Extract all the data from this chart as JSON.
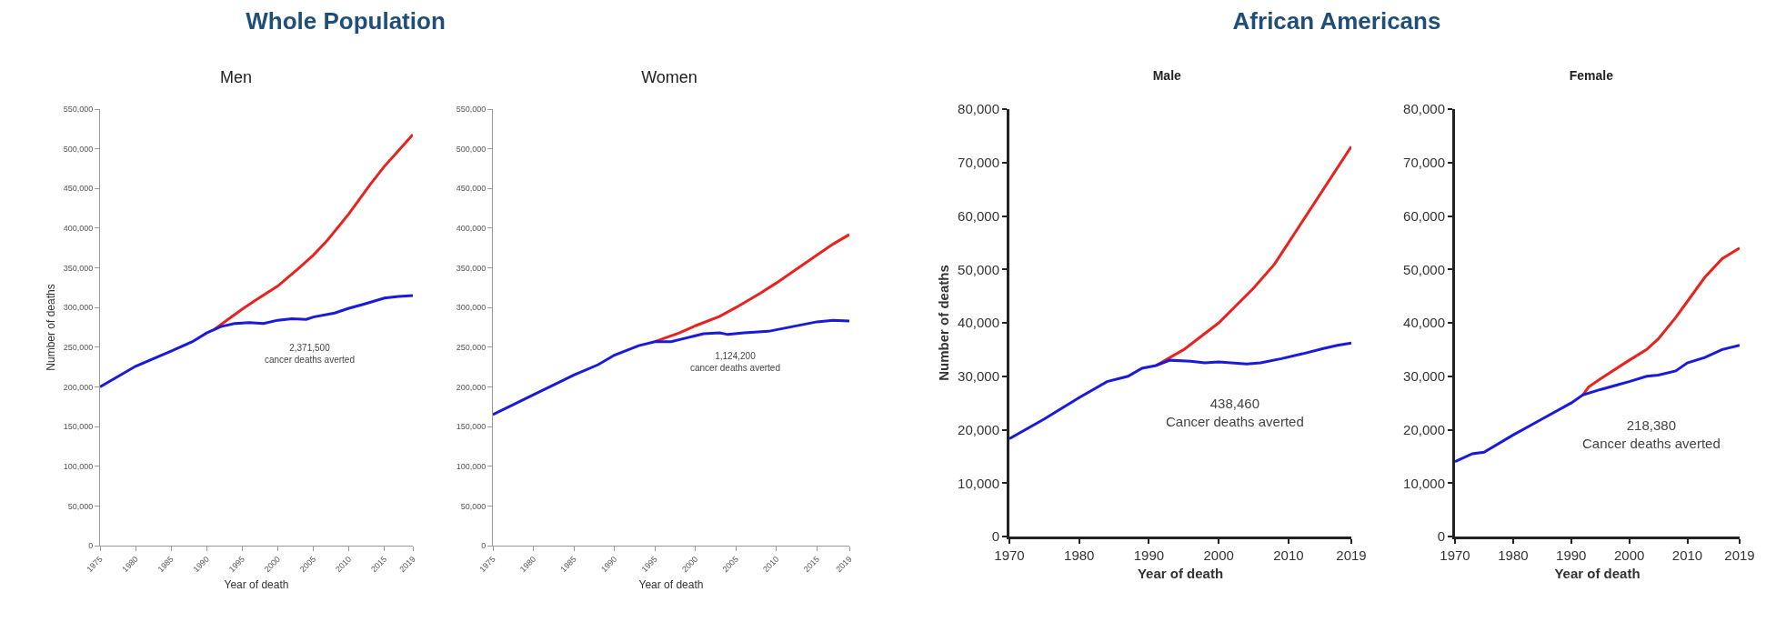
{
  "chart_data": [
    {
      "type": "line",
      "title": "Whole Population",
      "subtitle": "Men",
      "xlabel": "Year of death",
      "ylabel": "Number of deaths",
      "xlim": [
        1975,
        2019
      ],
      "xticks": [
        1975,
        1980,
        1985,
        1990,
        1995,
        2000,
        2005,
        2010,
        2015,
        2019
      ],
      "ylim": [
        0,
        550000
      ],
      "yticks": [
        {
          "value": 0,
          "label": "0"
        },
        {
          "value": 50000,
          "label": "50,000"
        },
        {
          "value": 100000,
          "label": "100,000"
        },
        {
          "value": 150000,
          "label": "150,000"
        },
        {
          "value": 200000,
          "label": "200,000"
        },
        {
          "value": 250000,
          "label": "250,000"
        },
        {
          "value": 300000,
          "label": "300,000"
        },
        {
          "value": 350000,
          "label": "350,000"
        },
        {
          "value": 400000,
          "label": "400,000"
        },
        {
          "value": 450000,
          "label": "450,000"
        },
        {
          "value": 500000,
          "label": "500,000"
        },
        {
          "value": 550000,
          "label": "550,000"
        }
      ],
      "grid": false,
      "series": [
        {
          "color": "#e8231f",
          "x": [
            1991,
            1993,
            1995,
            1997,
            2000,
            2003,
            2005,
            2007,
            2010,
            2013,
            2015,
            2017,
            2019
          ],
          "values": [
            272000,
            285000,
            298000,
            310000,
            327000,
            350000,
            366000,
            385000,
            418000,
            455000,
            478000,
            498000,
            518000
          ]
        },
        {
          "color": "#1a1adb",
          "x": [
            1975,
            1980,
            1985,
            1988,
            1990,
            1992,
            1994,
            1996,
            1998,
            2000,
            2002,
            2004,
            2005,
            2008,
            2010,
            2012,
            2015,
            2017,
            2019
          ],
          "values": [
            200000,
            226000,
            245000,
            257000,
            268000,
            276000,
            280000,
            281000,
            280000,
            284000,
            286000,
            285000,
            288000,
            293000,
            299000,
            304000,
            312000,
            314000,
            315000
          ]
        }
      ],
      "annotations": [
        "2,371,500\ncancer deaths averted"
      ]
    },
    {
      "type": "line",
      "title": "Women",
      "xlabel": "Year of death",
      "xlim": [
        1975,
        2019
      ],
      "xticks": [
        1975,
        1980,
        1985,
        1990,
        1995,
        2000,
        2005,
        2010,
        2015,
        2019
      ],
      "ylim": [
        0,
        550000
      ],
      "yticks": [
        {
          "value": 0,
          "label": "0"
        },
        {
          "value": 50000,
          "label": "50,000"
        },
        {
          "value": 100000,
          "label": "100,000"
        },
        {
          "value": 150000,
          "label": "150,000"
        },
        {
          "value": 200000,
          "label": "200,000"
        },
        {
          "value": 250000,
          "label": "250,000"
        },
        {
          "value": 300000,
          "label": "300,000"
        },
        {
          "value": 350000,
          "label": "350,000"
        },
        {
          "value": 400000,
          "label": "400,000"
        },
        {
          "value": 450000,
          "label": "450,000"
        },
        {
          "value": 500000,
          "label": "500,000"
        },
        {
          "value": 550000,
          "label": "550,000"
        }
      ],
      "grid": false,
      "series": [
        {
          "color": "#e8231f",
          "x": [
            1995,
            1998,
            2000,
            2003,
            2005,
            2008,
            2010,
            2013,
            2015,
            2017,
            2019
          ],
          "values": [
            257000,
            268000,
            277000,
            289000,
            300000,
            318000,
            331000,
            352000,
            366000,
            380000,
            392000
          ]
        },
        {
          "color": "#1a1adb",
          "x": [
            1975,
            1978,
            1980,
            1983,
            1985,
            1988,
            1990,
            1993,
            1995,
            1997,
            1999,
            2001,
            2003,
            2004,
            2006,
            2009,
            2012,
            2015,
            2017,
            2019
          ],
          "values": [
            165000,
            180000,
            190000,
            205000,
            215000,
            228000,
            240000,
            252000,
            257000,
            257000,
            262000,
            267000,
            268000,
            266000,
            268000,
            270000,
            276000,
            282000,
            284000,
            283000
          ]
        }
      ],
      "annotations": [
        "1,124,200\ncancer deaths averted"
      ]
    },
    {
      "type": "line",
      "title": "African Americans",
      "subtitle": "Male",
      "xlabel": "Year of death",
      "ylabel": "Number of deaths",
      "xlim": [
        1970,
        2019
      ],
      "xticks": [
        1970,
        1980,
        1990,
        2000,
        2010,
        2019
      ],
      "ylim": [
        0,
        80000
      ],
      "yticks": [
        {
          "value": 0,
          "label": "0"
        },
        {
          "value": 10000,
          "label": "10,000"
        },
        {
          "value": 20000,
          "label": "20,000"
        },
        {
          "value": 30000,
          "label": "30,000"
        },
        {
          "value": 40000,
          "label": "40,000"
        },
        {
          "value": 50000,
          "label": "50,000"
        },
        {
          "value": 60000,
          "label": "60,000"
        },
        {
          "value": 70000,
          "label": "70,000"
        },
        {
          "value": 80000,
          "label": "80,000"
        }
      ],
      "grid": false,
      "series": [
        {
          "color": "#e8231f",
          "x": [
            1991,
            1995,
            2000,
            2005,
            2008,
            2010,
            2015,
            2019
          ],
          "values": [
            32000,
            35000,
            40000,
            46500,
            51000,
            55000,
            65000,
            73000
          ]
        },
        {
          "color": "#1a1adb",
          "x": [
            1970,
            1975,
            1980,
            1984,
            1987,
            1989,
            1991,
            1993,
            1996,
            1998,
            2000,
            2004,
            2006,
            2009,
            2012,
            2015,
            2017,
            2019
          ],
          "values": [
            18300,
            22000,
            26000,
            29000,
            30000,
            31500,
            32000,
            33000,
            32800,
            32500,
            32700,
            32300,
            32500,
            33300,
            34200,
            35200,
            35800,
            36200
          ]
        }
      ],
      "annotations": [
        "438,460\nCancer deaths averted"
      ]
    },
    {
      "type": "line",
      "title": "Female",
      "xlabel": "Year of death",
      "xlim": [
        1970,
        2019
      ],
      "xticks": [
        1970,
        1980,
        1990,
        2000,
        2010,
        2019
      ],
      "ylim": [
        0,
        80000
      ],
      "yticks": [
        {
          "value": 0,
          "label": "0"
        },
        {
          "value": 10000,
          "label": "10,000"
        },
        {
          "value": 20000,
          "label": "20,000"
        },
        {
          "value": 30000,
          "label": "30,000"
        },
        {
          "value": 40000,
          "label": "40,000"
        },
        {
          "value": 50000,
          "label": "50,000"
        },
        {
          "value": 60000,
          "label": "60,000"
        },
        {
          "value": 70000,
          "label": "70,000"
        },
        {
          "value": 80000,
          "label": "80,000"
        }
      ],
      "grid": false,
      "series": [
        {
          "color": "#e8231f",
          "x": [
            1992,
            1993,
            1995,
            2000,
            2003,
            2005,
            2008,
            2010,
            2013,
            2016,
            2019
          ],
          "values": [
            26500,
            28000,
            29500,
            33000,
            35000,
            37000,
            41000,
            44000,
            48500,
            52000,
            54000
          ]
        },
        {
          "color": "#1a1adb",
          "x": [
            1970,
            1973,
            1975,
            1980,
            1985,
            1990,
            1992,
            1995,
            2000,
            2003,
            2005,
            2008,
            2010,
            2013,
            2016,
            2019
          ],
          "values": [
            14000,
            15500,
            15800,
            19000,
            22000,
            25000,
            26500,
            27500,
            29000,
            30000,
            30200,
            31000,
            32500,
            33500,
            35000,
            35800
          ]
        }
      ],
      "annotations": [
        "218,380\nCancer deaths averted"
      ]
    }
  ]
}
